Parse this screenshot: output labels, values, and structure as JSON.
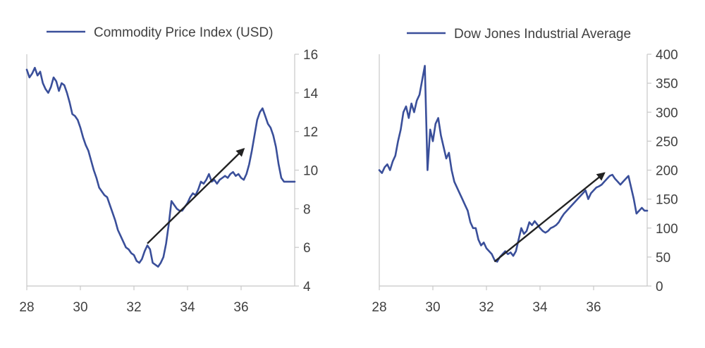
{
  "chart_data": [
    {
      "type": "line",
      "x_tick_labels": [
        "28",
        "30",
        "32",
        "34",
        "36"
      ],
      "y_tick_labels": [
        "4",
        "6",
        "8",
        "10",
        "12",
        "14",
        "16"
      ],
      "xlim": [
        28,
        38
      ],
      "ylim": [
        4,
        16
      ],
      "y_axis_side": "right",
      "grid": false,
      "legend_position": "top",
      "series": [
        {
          "name": "Commodity Price Index (USD)",
          "color": "#3a4f9a",
          "x": [
            28.0,
            28.1,
            28.2,
            28.3,
            28.4,
            28.5,
            28.6,
            28.7,
            28.8,
            28.9,
            29.0,
            29.1,
            29.2,
            29.3,
            29.4,
            29.5,
            29.6,
            29.7,
            29.8,
            29.9,
            30.0,
            30.1,
            30.2,
            30.3,
            30.4,
            30.5,
            30.6,
            30.7,
            30.8,
            30.9,
            31.0,
            31.1,
            31.2,
            31.3,
            31.4,
            31.5,
            31.6,
            31.7,
            31.8,
            31.9,
            32.0,
            32.1,
            32.2,
            32.3,
            32.4,
            32.5,
            32.6,
            32.7,
            32.8,
            32.9,
            33.0,
            33.1,
            33.2,
            33.3,
            33.4,
            33.5,
            33.6,
            33.7,
            33.8,
            33.9,
            34.0,
            34.1,
            34.2,
            34.3,
            34.4,
            34.5,
            34.6,
            34.7,
            34.8,
            34.9,
            35.0,
            35.1,
            35.2,
            35.3,
            35.4,
            35.5,
            35.6,
            35.7,
            35.8,
            35.9,
            36.0,
            36.1,
            36.2,
            36.3,
            36.4,
            36.5,
            36.6,
            36.7,
            36.8,
            36.9,
            37.0,
            37.1,
            37.2,
            37.3,
            37.4,
            37.5,
            37.6,
            37.7,
            37.8,
            37.9,
            38.0
          ],
          "values": [
            15.2,
            14.8,
            15.0,
            15.3,
            14.9,
            15.1,
            14.5,
            14.2,
            14.0,
            14.3,
            14.8,
            14.6,
            14.1,
            14.5,
            14.4,
            14.0,
            13.5,
            12.9,
            12.8,
            12.6,
            12.2,
            11.7,
            11.3,
            11.0,
            10.5,
            10.0,
            9.6,
            9.1,
            8.9,
            8.7,
            8.6,
            8.2,
            7.8,
            7.4,
            6.9,
            6.6,
            6.3,
            6.0,
            5.9,
            5.7,
            5.6,
            5.3,
            5.2,
            5.4,
            5.8,
            6.1,
            5.9,
            5.2,
            5.1,
            5.0,
            5.2,
            5.5,
            6.2,
            7.2,
            8.4,
            8.2,
            8.0,
            7.9,
            7.9,
            8.1,
            8.3,
            8.6,
            8.8,
            8.7,
            9.0,
            9.4,
            9.3,
            9.5,
            9.8,
            9.4,
            9.5,
            9.3,
            9.5,
            9.6,
            9.7,
            9.6,
            9.8,
            9.9,
            9.7,
            9.8,
            9.6,
            9.5,
            9.8,
            10.3,
            11.0,
            11.8,
            12.6,
            13.0,
            13.2,
            12.8,
            12.4,
            12.2,
            11.8,
            11.2,
            10.3,
            9.6,
            9.4,
            9.4,
            9.4,
            9.4,
            9.4
          ]
        }
      ],
      "annotations": [
        {
          "type": "arrow",
          "from": [
            32.5,
            6.2
          ],
          "to": [
            36.1,
            11.1
          ],
          "color": "#222222"
        }
      ]
    },
    {
      "type": "line",
      "x_tick_labels": [
        "28",
        "30",
        "32",
        "34",
        "36"
      ],
      "y_tick_labels": [
        "0",
        "50",
        "100",
        "150",
        "200",
        "250",
        "300",
        "350",
        "400"
      ],
      "xlim": [
        28,
        38
      ],
      "ylim": [
        0,
        400
      ],
      "y_axis_side": "right",
      "grid": false,
      "legend_position": "top",
      "series": [
        {
          "name": "Dow Jones Industrial Average",
          "color": "#3a4f9a",
          "x": [
            28.0,
            28.1,
            28.2,
            28.3,
            28.4,
            28.5,
            28.6,
            28.7,
            28.8,
            28.9,
            29.0,
            29.1,
            29.2,
            29.3,
            29.4,
            29.5,
            29.6,
            29.7,
            29.8,
            29.9,
            30.0,
            30.1,
            30.2,
            30.3,
            30.4,
            30.5,
            30.6,
            30.7,
            30.8,
            30.9,
            31.0,
            31.1,
            31.2,
            31.3,
            31.4,
            31.5,
            31.6,
            31.7,
            31.8,
            31.9,
            32.0,
            32.1,
            32.2,
            32.3,
            32.4,
            32.5,
            32.6,
            32.7,
            32.8,
            32.9,
            33.0,
            33.1,
            33.2,
            33.3,
            33.4,
            33.5,
            33.6,
            33.7,
            33.8,
            33.9,
            34.0,
            34.1,
            34.2,
            34.3,
            34.4,
            34.5,
            34.6,
            34.7,
            34.8,
            34.9,
            35.0,
            35.1,
            35.2,
            35.3,
            35.4,
            35.5,
            35.6,
            35.7,
            35.8,
            35.9,
            36.0,
            36.1,
            36.2,
            36.3,
            36.4,
            36.5,
            36.6,
            36.7,
            36.8,
            36.9,
            37.0,
            37.1,
            37.2,
            37.3,
            37.4,
            37.5,
            37.6,
            37.7,
            37.8,
            37.9,
            38.0
          ],
          "values": [
            200,
            195,
            205,
            210,
            200,
            215,
            225,
            250,
            270,
            300,
            310,
            290,
            315,
            300,
            320,
            330,
            355,
            380,
            200,
            270,
            250,
            280,
            290,
            260,
            240,
            220,
            230,
            200,
            180,
            170,
            160,
            150,
            140,
            130,
            110,
            100,
            100,
            80,
            70,
            75,
            65,
            60,
            55,
            45,
            42,
            50,
            55,
            60,
            55,
            58,
            52,
            60,
            80,
            100,
            90,
            95,
            110,
            105,
            112,
            106,
            100,
            95,
            92,
            95,
            100,
            102,
            105,
            110,
            118,
            125,
            130,
            135,
            140,
            145,
            150,
            155,
            160,
            165,
            150,
            160,
            165,
            170,
            172,
            175,
            180,
            185,
            190,
            192,
            185,
            180,
            175,
            180,
            185,
            190,
            170,
            150,
            125,
            130,
            135,
            130,
            130
          ]
        }
      ],
      "annotations": [
        {
          "type": "arrow",
          "from": [
            32.3,
            42
          ],
          "to": [
            36.4,
            195
          ],
          "color": "#222222"
        }
      ]
    }
  ]
}
